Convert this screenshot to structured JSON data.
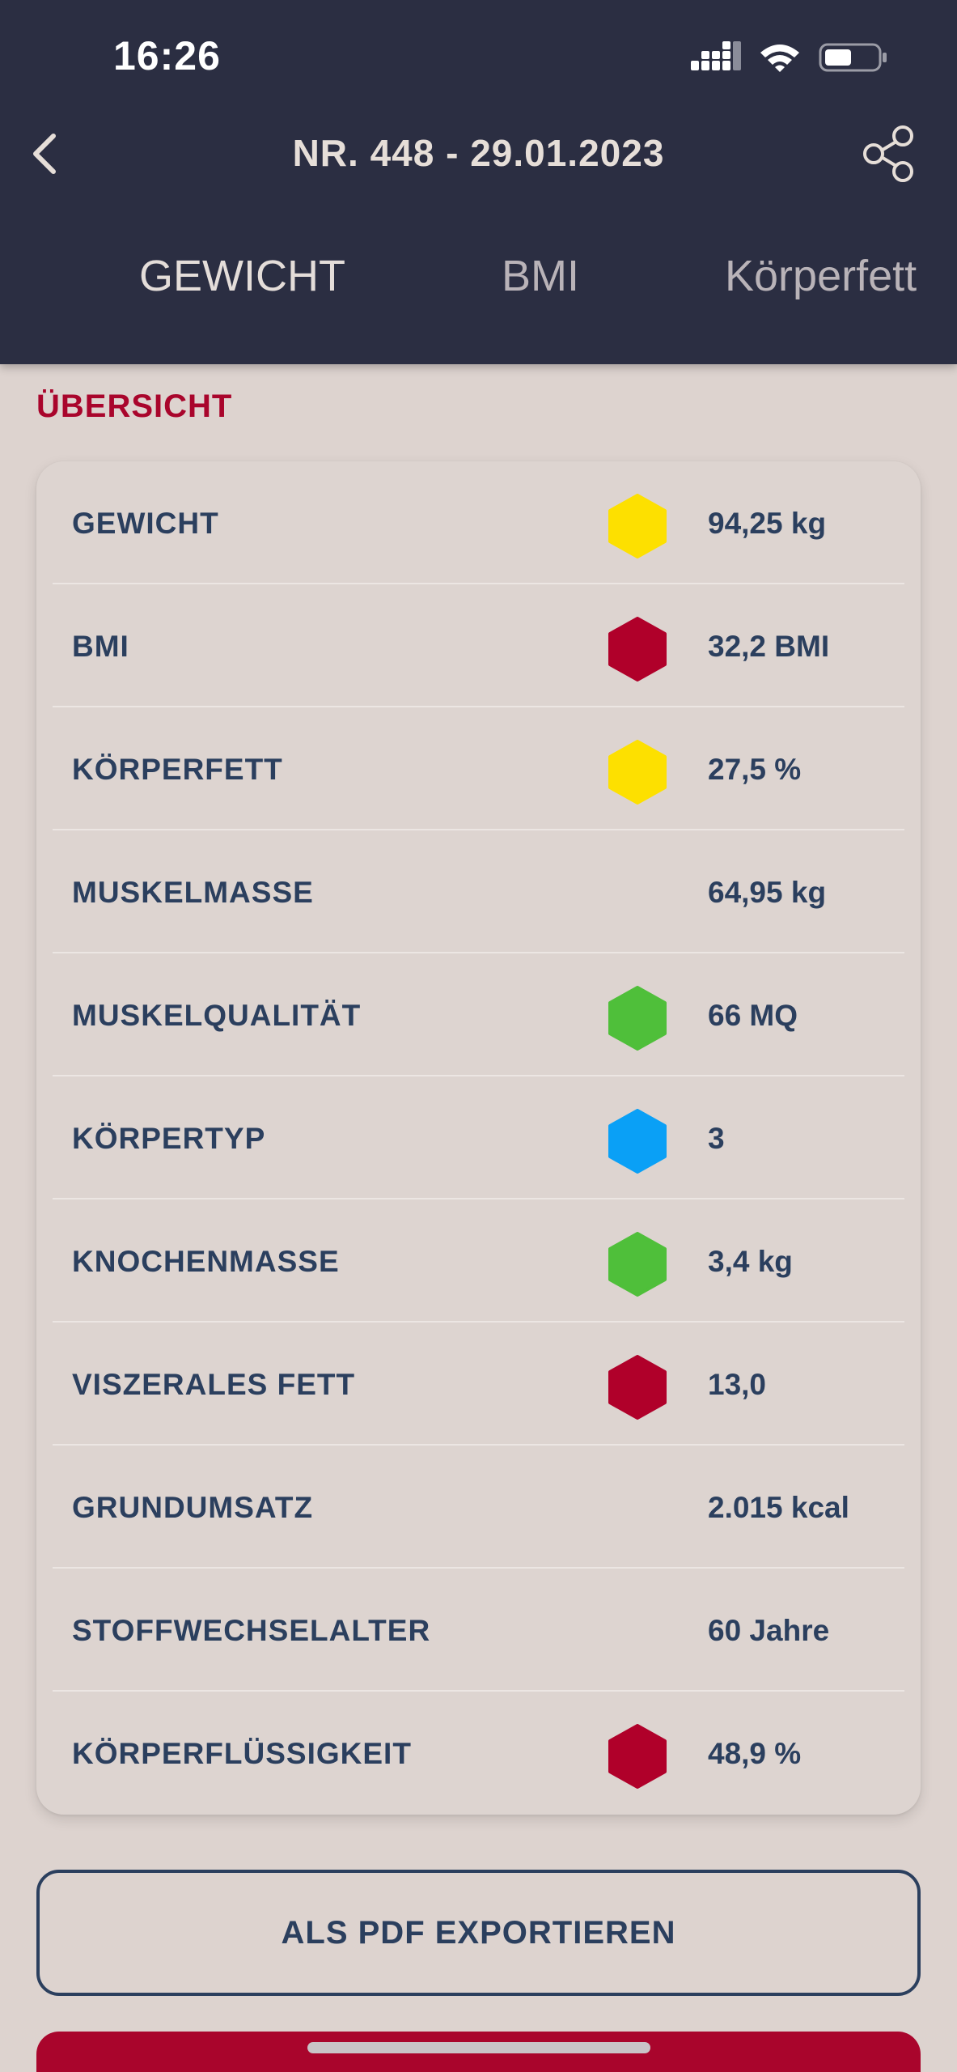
{
  "status_bar": {
    "time": "16:26"
  },
  "header": {
    "title": "NR. 448 - 29.01.2023"
  },
  "tabs": [
    {
      "label": "GEWICHT",
      "active": true
    },
    {
      "label": "BMI",
      "active": false
    },
    {
      "label": "Körperfett",
      "active": false
    }
  ],
  "section": {
    "label": "ÜBERSICHT"
  },
  "rows": [
    {
      "label": "GEWICHT",
      "value": "94,25 kg",
      "indicator": "yellow"
    },
    {
      "label": "BMI",
      "value": "32,2 BMI",
      "indicator": "red"
    },
    {
      "label": "KÖRPERFETT",
      "value": "27,5 %",
      "indicator": "yellow"
    },
    {
      "label": "MUSKELMASSE",
      "value": "64,95 kg",
      "indicator": "none"
    },
    {
      "label": "MUSKELQUALITÄT",
      "value": "66 MQ",
      "indicator": "green"
    },
    {
      "label": "KÖRPERTYP",
      "value": "3",
      "indicator": "blue"
    },
    {
      "label": "KNOCHENMASSE",
      "value": "3,4 kg",
      "indicator": "green"
    },
    {
      "label": "VISZERALES FETT",
      "value": "13,0",
      "indicator": "red"
    },
    {
      "label": "GRUNDUMSATZ",
      "value": "2.015 kcal",
      "indicator": "none"
    },
    {
      "label": "STOFFWECHSELALTER",
      "value": "60 Jahre",
      "indicator": "none"
    },
    {
      "label": "KÖRPERFLÜSSIGKEIT",
      "value": "48,9 %",
      "indicator": "red"
    }
  ],
  "indicator_colors": {
    "yellow": "#fde000",
    "red": "#b0002a",
    "green": "#4fbf3a",
    "blue": "#0aa0f6"
  },
  "export_button": {
    "label": "ALS PDF EXPORTIEREN"
  },
  "colors": {
    "header_bg": "#2b2e42",
    "accent_red": "#a9052c",
    "text_navy": "#2b3f5e"
  }
}
